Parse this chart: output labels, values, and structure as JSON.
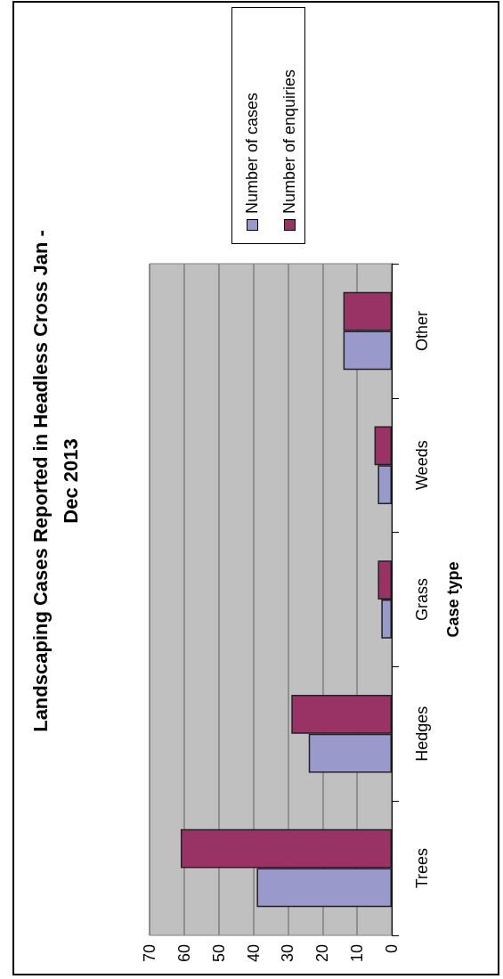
{
  "chart_data": {
    "type": "bar",
    "title": "Landscaping Cases Reported in Headless Cross Jan -\nDec 2013",
    "ylabel": "Case type",
    "orientation": "horizontal",
    "categories": [
      "Other",
      "Weeds",
      "Grass",
      "Hedges",
      "Trees"
    ],
    "series": [
      {
        "name": "Number of cases",
        "color": "#9999cc",
        "values": [
          14,
          4,
          3,
          24,
          39
        ]
      },
      {
        "name": "Number of enquiries",
        "color": "#993366",
        "values": [
          14,
          5,
          4,
          29,
          61
        ]
      }
    ],
    "xlim": [
      70,
      0
    ],
    "xticks": [
      70,
      60,
      50,
      40,
      30,
      20,
      10,
      0
    ],
    "grid": "x",
    "legend": "right"
  }
}
